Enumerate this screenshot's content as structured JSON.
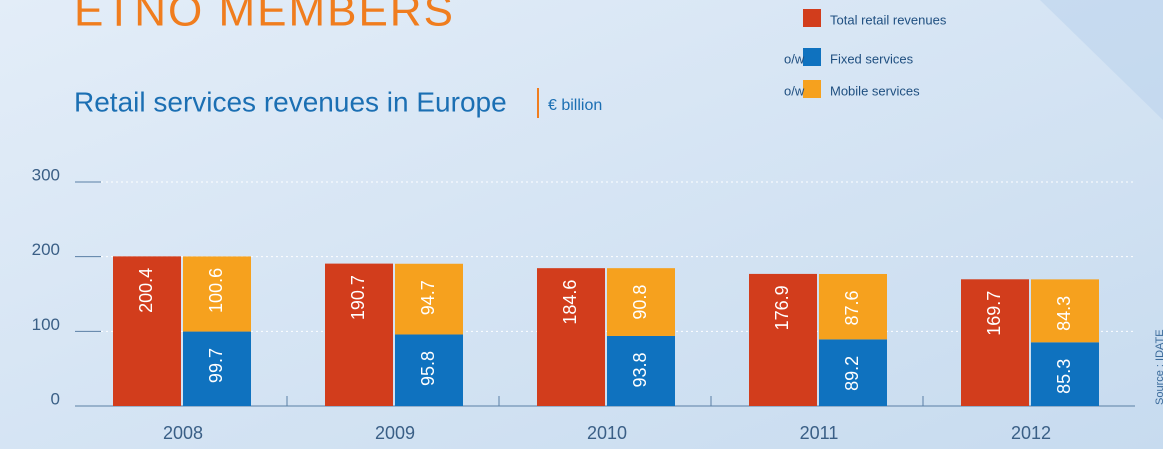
{
  "chart_data": {
    "type": "bar",
    "title": "ETNO MEMBERS",
    "subtitle": "Retail services revenues in Europe",
    "unit": "€ billion",
    "source": "Source : IDATE",
    "categories": [
      "2008",
      "2009",
      "2010",
      "2011",
      "2012"
    ],
    "series": [
      {
        "name": "Total retail revenues",
        "color": "#d23d1c",
        "stack": 0,
        "values": [
          200.4,
          190.7,
          184.6,
          176.9,
          169.7
        ]
      },
      {
        "name": "Fixed services",
        "prefix": "o/w",
        "color": "#0f72bf",
        "stack": 1,
        "values": [
          99.7,
          95.8,
          93.8,
          89.2,
          85.3
        ]
      },
      {
        "name": "Mobile services",
        "prefix": "o/w",
        "color": "#f6a11e",
        "stack": 1,
        "values": [
          100.6,
          94.7,
          90.8,
          87.6,
          84.3
        ]
      }
    ],
    "ylim": [
      0,
      300
    ],
    "yticks": [
      0,
      100,
      200,
      300
    ],
    "grid": true
  }
}
